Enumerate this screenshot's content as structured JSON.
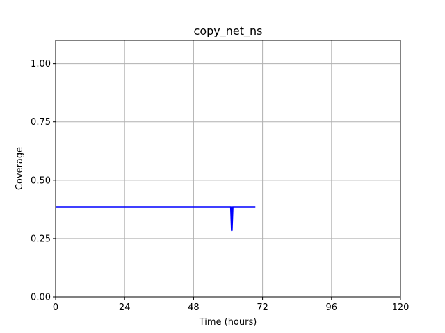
{
  "chart_data": {
    "type": "line",
    "title": "copy_net_ns",
    "xlabel": "Time (hours)",
    "ylabel": "Coverage",
    "xlim": [
      0,
      120
    ],
    "ylim": [
      0,
      1.1
    ],
    "xticks": [
      0,
      24,
      48,
      72,
      96,
      120
    ],
    "xtick_labels": [
      "0",
      "24",
      "48",
      "72",
      "96",
      "120"
    ],
    "yticks": [
      0,
      0.25,
      0.5,
      0.75,
      1.0
    ],
    "ytick_labels": [
      "0.00",
      "0.25",
      "0.50",
      "0.75",
      "1.00"
    ],
    "grid": true,
    "series": [
      {
        "color": "#0000ff",
        "x": [
          0,
          61.0,
          61.3,
          61.6,
          69.5
        ],
        "y": [
          0.385,
          0.385,
          0.285,
          0.385,
          0.385
        ]
      }
    ]
  }
}
